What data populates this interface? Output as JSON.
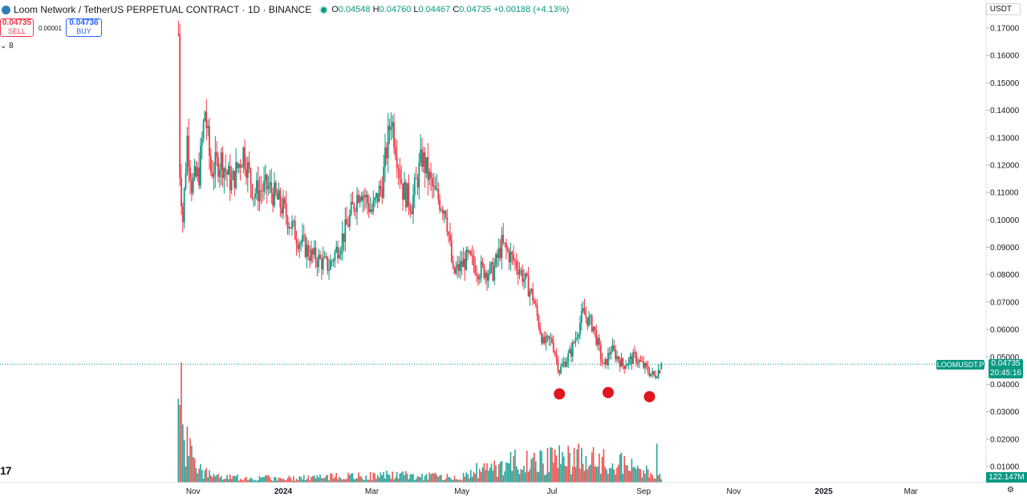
{
  "header": {
    "title": "Loom Network / TetherUS PERPETUAL CONTRACT · 1D · BINANCE",
    "open_label": "O",
    "open": "0.04548",
    "high_label": "H",
    "high": "0.04760",
    "low_label": "L",
    "low": "0.04467",
    "close_label": "C",
    "close": "0.04735",
    "change": "+0.00188 (+4.13%)"
  },
  "trade": {
    "sell_price": "0.04735",
    "sell_label": "SELL",
    "spread": "0.00001",
    "buy_price": "0.04736",
    "buy_label": "BUY"
  },
  "indicator_count": "8",
  "currency": "USDT",
  "price_tags": {
    "symbol": "LOOMUSDT.P",
    "last_price": "0.04735",
    "countdown": "20:45:16",
    "volume": "122.147M"
  },
  "colors": {
    "up": "#089981",
    "down": "#f23645",
    "volume_up": "#26a69a",
    "volume_down": "#ef5350",
    "marker": "#e0151f"
  },
  "chart_data": {
    "type": "candlestick",
    "symbol": "LOOMUSDT.P",
    "y_axis": {
      "ylim": [
        0.0,
        0.175
      ],
      "ticks": [
        "0.17000",
        "0.16000",
        "0.15000",
        "0.14000",
        "0.13000",
        "0.12000",
        "0.11000",
        "0.10000",
        "0.09000",
        "0.08000",
        "0.07000",
        "0.06000",
        "0.05000",
        "0.04000",
        "0.03000",
        "0.02000",
        "0.01000"
      ],
      "position": "right"
    },
    "x_axis": {
      "ticks": [
        "Nov",
        "2024",
        "Mar",
        "May",
        "Jul",
        "Sep",
        "Nov",
        "2025",
        "Mar"
      ]
    },
    "last_price": 0.04735,
    "price_series": [
      {
        "date": "2023-10-22",
        "price": 0.168
      },
      {
        "date": "2023-10-23",
        "price": 0.118
      },
      {
        "date": "2023-10-25",
        "price": 0.1
      },
      {
        "date": "2023-10-28",
        "price": 0.13
      },
      {
        "date": "2023-10-31",
        "price": 0.113
      },
      {
        "date": "2023-11-05",
        "price": 0.117
      },
      {
        "date": "2023-11-09",
        "price": 0.14
      },
      {
        "date": "2023-11-13",
        "price": 0.118
      },
      {
        "date": "2023-11-20",
        "price": 0.122
      },
      {
        "date": "2023-11-27",
        "price": 0.113
      },
      {
        "date": "2023-12-05",
        "price": 0.125
      },
      {
        "date": "2023-12-12",
        "price": 0.11
      },
      {
        "date": "2023-12-22",
        "price": 0.112
      },
      {
        "date": "2024-01-01",
        "price": 0.104
      },
      {
        "date": "2024-01-10",
        "price": 0.094
      },
      {
        "date": "2024-01-20",
        "price": 0.087
      },
      {
        "date": "2024-02-01",
        "price": 0.083
      },
      {
        "date": "2024-02-12",
        "price": 0.096
      },
      {
        "date": "2024-02-22",
        "price": 0.112
      },
      {
        "date": "2024-03-01",
        "price": 0.103
      },
      {
        "date": "2024-03-08",
        "price": 0.113
      },
      {
        "date": "2024-03-14",
        "price": 0.138
      },
      {
        "date": "2024-03-22",
        "price": 0.111
      },
      {
        "date": "2024-03-28",
        "price": 0.106
      },
      {
        "date": "2024-04-04",
        "price": 0.123
      },
      {
        "date": "2024-04-12",
        "price": 0.11
      },
      {
        "date": "2024-04-20",
        "price": 0.104
      },
      {
        "date": "2024-04-25",
        "price": 0.08
      },
      {
        "date": "2024-05-05",
        "price": 0.086
      },
      {
        "date": "2024-05-12",
        "price": 0.082
      },
      {
        "date": "2024-05-22",
        "price": 0.081
      },
      {
        "date": "2024-05-28",
        "price": 0.091
      },
      {
        "date": "2024-06-08",
        "price": 0.083
      },
      {
        "date": "2024-06-18",
        "price": 0.072
      },
      {
        "date": "2024-06-25",
        "price": 0.055
      },
      {
        "date": "2024-07-01",
        "price": 0.056
      },
      {
        "date": "2024-07-06",
        "price": 0.045
      },
      {
        "date": "2024-07-14",
        "price": 0.052
      },
      {
        "date": "2024-07-22",
        "price": 0.066
      },
      {
        "date": "2024-07-29",
        "price": 0.061
      },
      {
        "date": "2024-08-05",
        "price": 0.046
      },
      {
        "date": "2024-08-10",
        "price": 0.053
      },
      {
        "date": "2024-08-18",
        "price": 0.047
      },
      {
        "date": "2024-08-26",
        "price": 0.05
      },
      {
        "date": "2024-09-02",
        "price": 0.046
      },
      {
        "date": "2024-09-08",
        "price": 0.043
      },
      {
        "date": "2024-09-14",
        "price": 0.047
      }
    ],
    "volume_series": [
      {
        "date": "2023-10-22",
        "volume": 1.0
      },
      {
        "date": "2023-10-25",
        "volume": 0.55
      },
      {
        "date": "2023-10-28",
        "volume": 0.35
      },
      {
        "date": "2023-11-05",
        "volume": 0.12
      },
      {
        "date": "2023-11-15",
        "volume": 0.05
      },
      {
        "date": "2024-01-01",
        "volume": 0.04
      },
      {
        "date": "2024-03-14",
        "volume": 0.07
      },
      {
        "date": "2024-05-01",
        "volume": 0.05
      },
      {
        "date": "2024-06-01",
        "volume": 0.18
      },
      {
        "date": "2024-07-22",
        "volume": 0.22
      },
      {
        "date": "2024-08-18",
        "volume": 0.18
      },
      {
        "date": "2024-09-14",
        "volume": 0.04
      }
    ],
    "markers": [
      {
        "date": "2024-07-06",
        "price": 0.0365
      },
      {
        "date": "2024-08-08",
        "price": 0.037
      },
      {
        "date": "2024-09-05",
        "price": 0.0355
      }
    ]
  }
}
